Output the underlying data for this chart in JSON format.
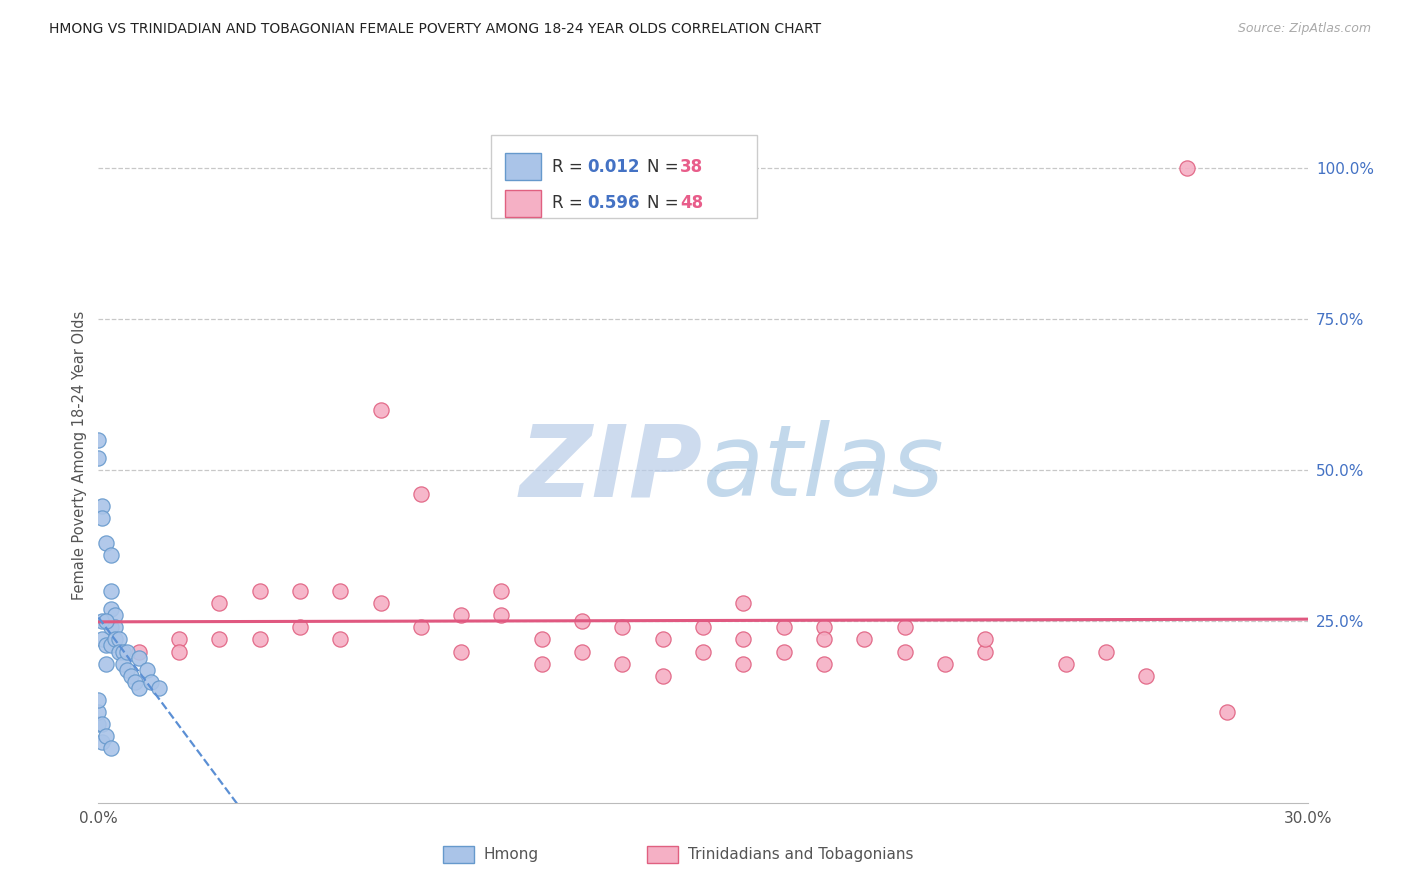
{
  "title": "HMONG VS TRINIDADIAN AND TOBAGONIAN FEMALE POVERTY AMONG 18-24 YEAR OLDS CORRELATION CHART",
  "source": "Source: ZipAtlas.com",
  "ylabel": "Female Poverty Among 18-24 Year Olds",
  "watermark": "ZIPAtlas",
  "xlim": [
    0.0,
    0.3
  ],
  "ylim": [
    -0.05,
    1.1
  ],
  "hmong_R": 0.012,
  "hmong_N": 38,
  "trint_R": 0.596,
  "trint_N": 48,
  "legend_label1": "Hmong",
  "legend_label2": "Trinidadians and Tobagonians",
  "hmong_scatter_color": "#aac4e8",
  "hmong_edge_color": "#6699cc",
  "trint_scatter_color": "#f5b0c5",
  "trint_edge_color": "#e06080",
  "hmong_line_color": "#5b8fd4",
  "trint_line_color": "#e05880",
  "legend_R_color": "#4472c4",
  "legend_N_color": "#e85d8a",
  "background_color": "#ffffff",
  "grid_color": "#c8c8c8",
  "title_color": "#222222",
  "watermark_color": "#cdddf5",
  "right_tick_color": "#4472c4",
  "hmong_x": [
    0.0,
    0.0,
    0.0,
    0.001,
    0.001,
    0.001,
    0.001,
    0.002,
    0.002,
    0.002,
    0.003,
    0.003,
    0.003,
    0.003,
    0.004,
    0.004,
    0.004,
    0.005,
    0.005,
    0.006,
    0.006,
    0.007,
    0.007,
    0.008,
    0.009,
    0.01,
    0.01,
    0.012,
    0.013,
    0.015,
    0.0,
    0.001,
    0.002,
    0.003,
    0.0,
    0.001,
    0.002,
    0.003
  ],
  "hmong_y": [
    0.55,
    0.52,
    0.08,
    0.44,
    0.42,
    0.25,
    0.22,
    0.38,
    0.21,
    0.18,
    0.36,
    0.27,
    0.24,
    0.21,
    0.26,
    0.24,
    0.22,
    0.22,
    0.2,
    0.2,
    0.18,
    0.2,
    0.17,
    0.16,
    0.15,
    0.19,
    0.14,
    0.17,
    0.15,
    0.14,
    0.1,
    0.05,
    0.25,
    0.3,
    0.12,
    0.08,
    0.06,
    0.04
  ],
  "trint_x": [
    0.27,
    0.07,
    0.08,
    0.1,
    0.01,
    0.02,
    0.02,
    0.03,
    0.03,
    0.04,
    0.04,
    0.05,
    0.05,
    0.06,
    0.06,
    0.07,
    0.08,
    0.09,
    0.09,
    0.1,
    0.11,
    0.11,
    0.12,
    0.12,
    0.13,
    0.13,
    0.14,
    0.14,
    0.15,
    0.15,
    0.16,
    0.16,
    0.17,
    0.18,
    0.18,
    0.19,
    0.2,
    0.21,
    0.22,
    0.16,
    0.17,
    0.18,
    0.2,
    0.22,
    0.24,
    0.25,
    0.26,
    0.28
  ],
  "trint_y": [
    1.0,
    0.6,
    0.46,
    0.3,
    0.2,
    0.22,
    0.2,
    0.28,
    0.22,
    0.3,
    0.22,
    0.3,
    0.24,
    0.3,
    0.22,
    0.28,
    0.24,
    0.26,
    0.2,
    0.26,
    0.22,
    0.18,
    0.25,
    0.2,
    0.24,
    0.18,
    0.22,
    0.16,
    0.24,
    0.2,
    0.22,
    0.18,
    0.2,
    0.24,
    0.18,
    0.22,
    0.2,
    0.18,
    0.2,
    0.28,
    0.24,
    0.22,
    0.24,
    0.22,
    0.18,
    0.2,
    0.16,
    0.1
  ]
}
